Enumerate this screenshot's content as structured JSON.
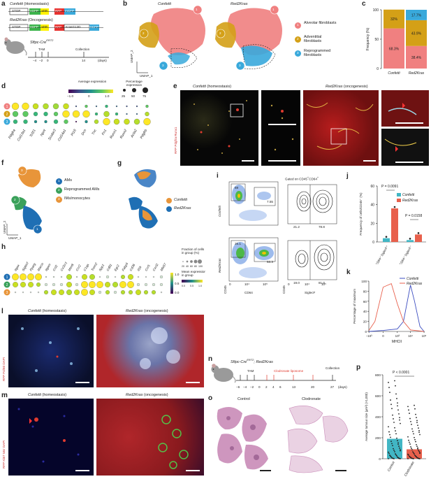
{
  "panels": {
    "a": "a",
    "b": "b",
    "c": "c",
    "d": "d",
    "e": "e",
    "f": "f",
    "g": "g",
    "h": "h",
    "i": "i",
    "j": "j",
    "k": "k",
    "l": "l",
    "m": "m",
    "n": "n",
    "o": "o",
    "p": "p"
  },
  "a": {
    "confetti_title": "Confetti",
    "confetti_sub": " (Homeostasis)",
    "red2_title": "Red2Kras",
    "red2_sub": " (Oncogenesis)",
    "stop": "STOP",
    "nGFP": "nGFP",
    "YFP": "YFP",
    "RFP": "RFP",
    "mCFP": "mCFP",
    "kras": "KrasG12D",
    "mouse_label": "Sftpc-Cre",
    "mouse_sup": "ERT2",
    "tam": "TAM",
    "collection": "Collection",
    "ticks": [
      "−4",
      "−2",
      "0",
      "14"
    ],
    "days": "(days)"
  },
  "b": {
    "left_title": "Confetti",
    "right_title": "Red2Kras",
    "xlabel": "UMAP_1",
    "ylabel": "UMAP_2",
    "legend": [
      {
        "num": "1",
        "label": "Alveolar fibroblasts",
        "color": "#f08080"
      },
      {
        "num": "2",
        "label": "Adventitial fibroblasts",
        "color": "#d4a017"
      },
      {
        "num": "3",
        "label": "Reprogrammed fibroblasts",
        "color": "#39a9db"
      }
    ]
  },
  "c": {
    "ylabel": "Frequency (%)",
    "yticks": [
      "0",
      "50",
      "100"
    ],
    "categories": [
      "Confetti",
      "Red2Kras"
    ]
  },
  "d": {
    "legend_avg": "Average expression",
    "legend_pct": "Percentage expression",
    "avg_ticks": [
      "−1.0",
      "0",
      "1.0"
    ],
    "pct_ticks": [
      "25",
      "50",
      "75"
    ],
    "genes": [
      "Pdgfra",
      "Col13a1",
      "Tcf21",
      "Npnt",
      "Scube3",
      "Col14a1",
      "Pi16",
      "Dcn",
      "Tnc",
      "Fn1",
      "Runx1",
      "Runx2",
      "Acta2",
      "Pdgfrb"
    ],
    "rows": [
      "1",
      "2",
      "3"
    ]
  },
  "e": {
    "left_title": "Confetti",
    "left_sub": " (homeostasis)",
    "right_title": "Red2Kras",
    "right_sub": " (oncogenesis)",
    "stain": "RFP Pdgfra Runx1"
  },
  "f": {
    "ylabel": "UMAP_2",
    "xlabel": "UMAP_1",
    "legend": [
      {
        "num": "1",
        "label": "AMs",
        "color": "#1f6fb4"
      },
      {
        "num": "2",
        "label": "Reprogrammed AMs",
        "color": "#3aa15a"
      },
      {
        "num": "3",
        "label": "IMs/monocytes",
        "color": "#e8953a"
      }
    ]
  },
  "g": {
    "legend": [
      {
        "label": "Confetti",
        "color": "#e8953a"
      },
      {
        "label": "Red2Kras",
        "color": "#1f6fb4"
      }
    ]
  },
  "h": {
    "genes": [
      "Itgax",
      "Siglecf",
      "Pparg",
      "Marco",
      "Itgam",
      "Ccl2",
      "Cx3cr1",
      "Mertk",
      "Ccr2",
      "C1qa",
      "Trem2",
      "Spp1",
      "Cd81",
      "Egr2",
      "Fabp5",
      "Cd36",
      "Il1b",
      "Ccr5",
      "Cxcl2",
      "Mki67"
    ],
    "rows": [
      "1",
      "2",
      "3"
    ],
    "legend_frac": "Fraction of cells in group (%)",
    "frac_ticks": [
      "20",
      "40",
      "60",
      "80",
      "100"
    ],
    "legend_mean": "Mean expression in group",
    "mean_ticks": [
      "0.0",
      "0.5",
      "1.0"
    ],
    "scale_ticks": [
      "1.0",
      "0.5",
      "0.0"
    ]
  },
  "i": {
    "gate_title": "Gated on CD45",
    "gate_title_sup1": "+",
    "gate_title_mid": "CD64",
    "gate_title_sup2": "+",
    "row1_label": "Confetti",
    "row2_label": "Red2Kras",
    "xlabel_left": "CD64",
    "ylabel_left": "CD45",
    "xlabel_right": "SiglecF",
    "ylabel_right": "CD45",
    "q_top_left": [
      "69",
      "7.55"
    ],
    "q_top_right": [
      "21.2",
      "78.8"
    ],
    "q_bot_left": [
      "26.1",
      "53.3"
    ],
    "q_bot_right": [
      "19.0",
      "81.0"
    ],
    "ticks_left": [
      "0",
      "10⁴",
      "10⁵"
    ],
    "ticks_right": [
      "0",
      "10⁴",
      "10⁵"
    ]
  },
  "j": {
    "p1": "P = 0.0091",
    "p2": "P = 0.0158",
    "ylabel": "Frequency of cells/CD45⁺ (%)",
    "yticks": [
      "0",
      "20",
      "40",
      "60"
    ],
    "categories": [
      "CD64⁺ SiglecF⁺",
      "CD64⁺ SiglecF⁻"
    ],
    "legend": [
      {
        "label": "Confetti",
        "color": "#41b6c4"
      },
      {
        "label": "Red2Kras",
        "color": "#e8604c"
      }
    ]
  },
  "k": {
    "legend": [
      {
        "label": "Confetti",
        "color": "#3b4cc0"
      },
      {
        "label": "Red2Kras",
        "color": "#e8604c"
      }
    ],
    "ylabel": "Percentage of maximum",
    "xlabel": "MHCII",
    "yticks": [
      "0",
      "20",
      "40",
      "60",
      "80",
      "100"
    ],
    "xticks": [
      "−10³",
      "0",
      "10³",
      "10⁴",
      "10⁵"
    ]
  },
  "l": {
    "left_title": "Confetti",
    "left_sub": " (homeostasis)",
    "right_title": "Red2Kras",
    "right_sub": " (oncogenesis)",
    "stain": "RFP F4/80 DAPI"
  },
  "m": {
    "left_title": "Confetti",
    "left_sub": " (homeostasis)",
    "right_title": "Red2Kras",
    "right_sub": " (oncogenesis)",
    "stain": "RFP Ki67 Msr DAPI"
  },
  "n": {
    "mouse_label": "Sftpc-Cre",
    "mouse_sup": "ERT2",
    "mouse_label2": "; Red2Kras",
    "tam": "TAM",
    "clodronate": "Clodronate liposome",
    "collection": "Collection",
    "ticks": [
      "−6",
      "−4",
      "−2",
      "0",
      "2",
      "4",
      "6",
      "13",
      "20",
      "27"
    ],
    "days": "(days)"
  },
  "o": {
    "left_title": "Control",
    "right_title": "Clodronate"
  },
  "p": {
    "pval": "P < 0.0001",
    "ylabel": "Average tumour size (μm²) (×1,000)",
    "yticks": [
      "0",
      "200",
      "400",
      "600",
      "800"
    ],
    "categories": [
      "Control",
      "Clodronate"
    ]
  },
  "chart_data": [
    {
      "type": "bar",
      "panel": "c",
      "categories": [
        "Confetti",
        "Red2Kras"
      ],
      "series": [
        {
          "name": "Alveolar fibroblasts",
          "values": [
            68.3,
            38.4
          ],
          "labels": [
            "68.3%",
            "38.4%"
          ],
          "color": "#f08080"
        },
        {
          "name": "Adventitial fibroblasts",
          "values": [
            32,
            43.9
          ],
          "labels": [
            "32%",
            "43.9%"
          ],
          "color": "#d4a017"
        },
        {
          "name": "Reprogrammed fibroblasts",
          "values": [
            0,
            17.7
          ],
          "labels": [
            "",
            "17.7%"
          ],
          "color": "#39a9db"
        }
      ],
      "stacked": true,
      "ylabel": "Frequency (%)",
      "ylim": [
        0,
        100
      ]
    },
    {
      "type": "bar",
      "panel": "j",
      "categories": [
        "CD64⁺ SiglecF⁺",
        "CD64⁺ SiglecF⁻"
      ],
      "series": [
        {
          "name": "Confetti",
          "values": [
            4,
            2
          ],
          "color": "#41b6c4"
        },
        {
          "name": "Red2Kras",
          "values": [
            36,
            8
          ],
          "color": "#e8604c"
        }
      ],
      "ylim": [
        0,
        60
      ]
    },
    {
      "type": "line",
      "panel": "k",
      "series": [
        {
          "name": "Confetti",
          "x": [
            -1000,
            0,
            1000,
            3000,
            10000,
            20000,
            50000,
            100000
          ],
          "values": [
            0,
            2,
            5,
            20,
            92,
            60,
            10,
            0
          ],
          "color": "#3b4cc0"
        },
        {
          "name": "Red2Kras",
          "x": [
            -1000,
            -300,
            0,
            300,
            1000,
            3000,
            10000,
            100000
          ],
          "values": [
            2,
            20,
            88,
            95,
            55,
            20,
            3,
            0
          ],
          "color": "#e8604c"
        }
      ],
      "ylabel": "Percentage of maximum",
      "xlabel": "MHCII",
      "ylim": [
        0,
        100
      ]
    },
    {
      "type": "bar",
      "panel": "p",
      "categories": [
        "Control",
        "Clodronate"
      ],
      "values": [
        190,
        90
      ],
      "ylabel": "Average tumour size (μm²) (×1,000)",
      "ylim": [
        0,
        800
      ]
    }
  ]
}
